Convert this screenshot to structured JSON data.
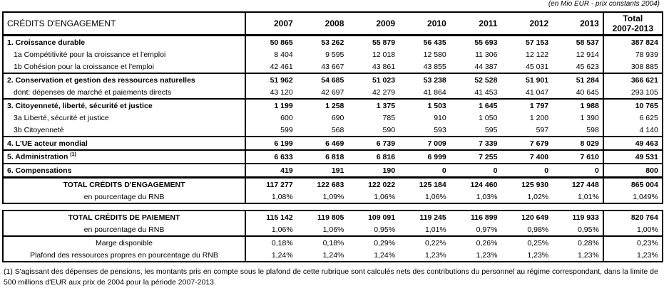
{
  "unit_note": "(en Mio EUR - prix constants 2004)",
  "header": {
    "label": "CRÉDITS D'ENGAGEMENT",
    "years": [
      "2007",
      "2008",
      "2009",
      "2010",
      "2011",
      "2012",
      "2013"
    ],
    "total_line1": "Total",
    "total_line2": "2007-2013"
  },
  "rows": [
    {
      "label": "1. Croissance durable",
      "values": [
        "50 865",
        "53 262",
        "55 879",
        "56 435",
        "55 693",
        "57 153",
        "58 537"
      ],
      "total": "387 824"
    },
    {
      "label": "1a Compétitivité pour la croissance et l'emploi",
      "values": [
        "8 404",
        "9 595",
        "12 018",
        "12 580",
        "11 306",
        "12 122",
        "12 914"
      ],
      "total": "78 939"
    },
    {
      "label": "1b Cohésion pour la croissance et l'emploi",
      "values": [
        "42 461",
        "43 667",
        "43 861",
        "43 855",
        "44 387",
        "45 031",
        "45 623"
      ],
      "total": "308 885"
    },
    {
      "label": "2. Conservation et gestion des ressources naturelles",
      "values": [
        "51 962",
        "54 685",
        "51 023",
        "53 238",
        "52 528",
        "51 901",
        "51 284"
      ],
      "total": "366 621"
    },
    {
      "label": "dont: dépenses de marché et paiements directs",
      "values": [
        "43 120",
        "42 697",
        "42 279",
        "41 864",
        "41 453",
        "41 047",
        "40 645"
      ],
      "total": "293 105"
    },
    {
      "label": "3. Citoyenneté, liberté, sécurité et justice",
      "values": [
        "1 199",
        "1 258",
        "1 375",
        "1 503",
        "1 645",
        "1 797",
        "1 988"
      ],
      "total": "10 765"
    },
    {
      "label": "3a Liberté, sécurité et justice",
      "values": [
        "600",
        "690",
        "785",
        "910",
        "1 050",
        "1 200",
        "1 390"
      ],
      "total": "6 625"
    },
    {
      "label": "3b Citoyenneté",
      "values": [
        "599",
        "568",
        "590",
        "593",
        "595",
        "597",
        "598"
      ],
      "total": "4 140"
    },
    {
      "label": "4. L'UE acteur mondial",
      "values": [
        "6 199",
        "6 469",
        "6 739",
        "7 009",
        "7 339",
        "7 679",
        "8 029"
      ],
      "total": "49 463"
    },
    {
      "label": "5. Administration",
      "sup": "(1)",
      "values": [
        "6 633",
        "6 818",
        "6 816",
        "6 999",
        "7 255",
        "7 400",
        "7 610"
      ],
      "total": "49 531"
    },
    {
      "label": "6. Compensations",
      "values": [
        "419",
        "191",
        "190",
        "0",
        "0",
        "0",
        "0"
      ],
      "total": "800"
    },
    {
      "label": "TOTAL CRÉDITS D'ENGAGEMENT",
      "values": [
        "117 277",
        "122 683",
        "122 022",
        "125 184",
        "124 460",
        "125 930",
        "127 448"
      ],
      "total": "865 004"
    },
    {
      "label": "en pourcentage du RNB",
      "values": [
        "1,08%",
        "1,09%",
        "1,06%",
        "1,06%",
        "1,03%",
        "1,02%",
        "1,01%"
      ],
      "total": "1,049%"
    }
  ],
  "payments": [
    {
      "label": "TOTAL CRÉDITS DE PAIEMENT",
      "values": [
        "115 142",
        "119 805",
        "109 091",
        "119 245",
        "116 899",
        "120 649",
        "119 933"
      ],
      "total": "820 764"
    },
    {
      "label": "en pourcentage du RNB",
      "values": [
        "1,06%",
        "1,06%",
        "0,95%",
        "1,01%",
        "0,97%",
        "0,98%",
        "0,95%"
      ],
      "total": "1,00%"
    },
    {
      "label": "Marge disponible",
      "values": [
        "0,18%",
        "0,18%",
        "0,29%",
        "0,22%",
        "0,26%",
        "0,25%",
        "0,28%"
      ],
      "total": "0,23%"
    },
    {
      "label": "Plafond des ressources propres en pourcentage du RNB",
      "values": [
        "1,24%",
        "1,24%",
        "1,24%",
        "1,23%",
        "1,23%",
        "1,23%",
        "1,23%"
      ],
      "total": "1,23%"
    }
  ],
  "footnote": "(1) S'agissant des dépenses de pensions, les montants pris en compte sous le plafond de cette rubrique sont calculés nets des contributions du personnel au régime correspondant, dans la limite de 500 millions d'EUR aux prix de 2004 pour la période 2007-2013."
}
